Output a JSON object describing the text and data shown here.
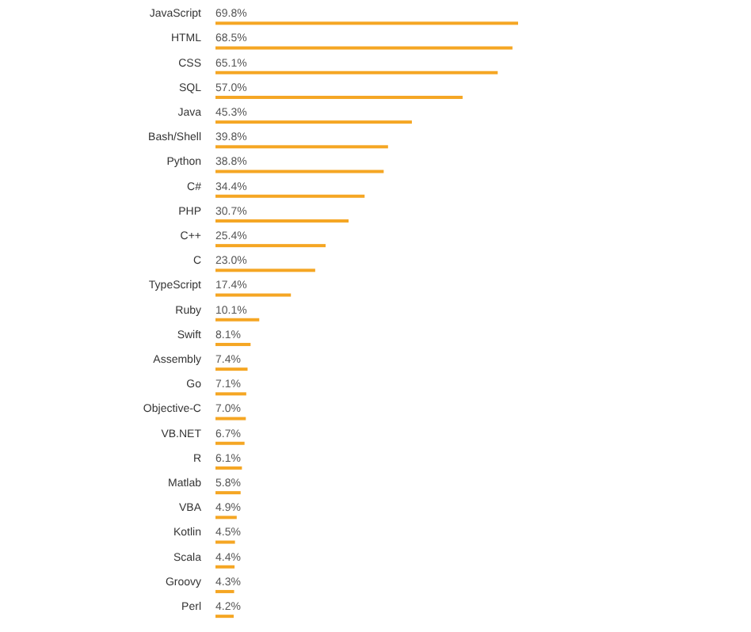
{
  "chart_data": {
    "type": "bar",
    "orientation": "horizontal",
    "color": "#f5a623",
    "categories": [
      "JavaScript",
      "HTML",
      "CSS",
      "SQL",
      "Java",
      "Bash/Shell",
      "Python",
      "C#",
      "PHP",
      "C++",
      "C",
      "TypeScript",
      "Ruby",
      "Swift",
      "Assembly",
      "Go",
      "Objective-C",
      "VB.NET",
      "R",
      "Matlab",
      "VBA",
      "Kotlin",
      "Scala",
      "Groovy",
      "Perl"
    ],
    "values": [
      69.8,
      68.5,
      65.1,
      57.0,
      45.3,
      39.8,
      38.8,
      34.4,
      30.7,
      25.4,
      23.0,
      17.4,
      10.1,
      8.1,
      7.4,
      7.1,
      7.0,
      6.7,
      6.1,
      5.8,
      4.9,
      4.5,
      4.4,
      4.3,
      4.2
    ],
    "value_labels": [
      "69.8%",
      "68.5%",
      "65.1%",
      "57.0%",
      "45.3%",
      "39.8%",
      "38.8%",
      "34.4%",
      "30.7%",
      "25.4%",
      "23.0%",
      "17.4%",
      "10.1%",
      "8.1%",
      "7.4%",
      "7.1%",
      "7.0%",
      "6.7%",
      "6.1%",
      "5.8%",
      "4.9%",
      "4.5%",
      "4.4%",
      "4.3%",
      "4.2%"
    ]
  }
}
